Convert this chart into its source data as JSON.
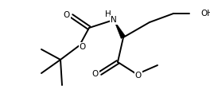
{
  "bg_color": "#ffffff",
  "line_color": "#000000",
  "lw": 1.4,
  "fs": 7.5
}
